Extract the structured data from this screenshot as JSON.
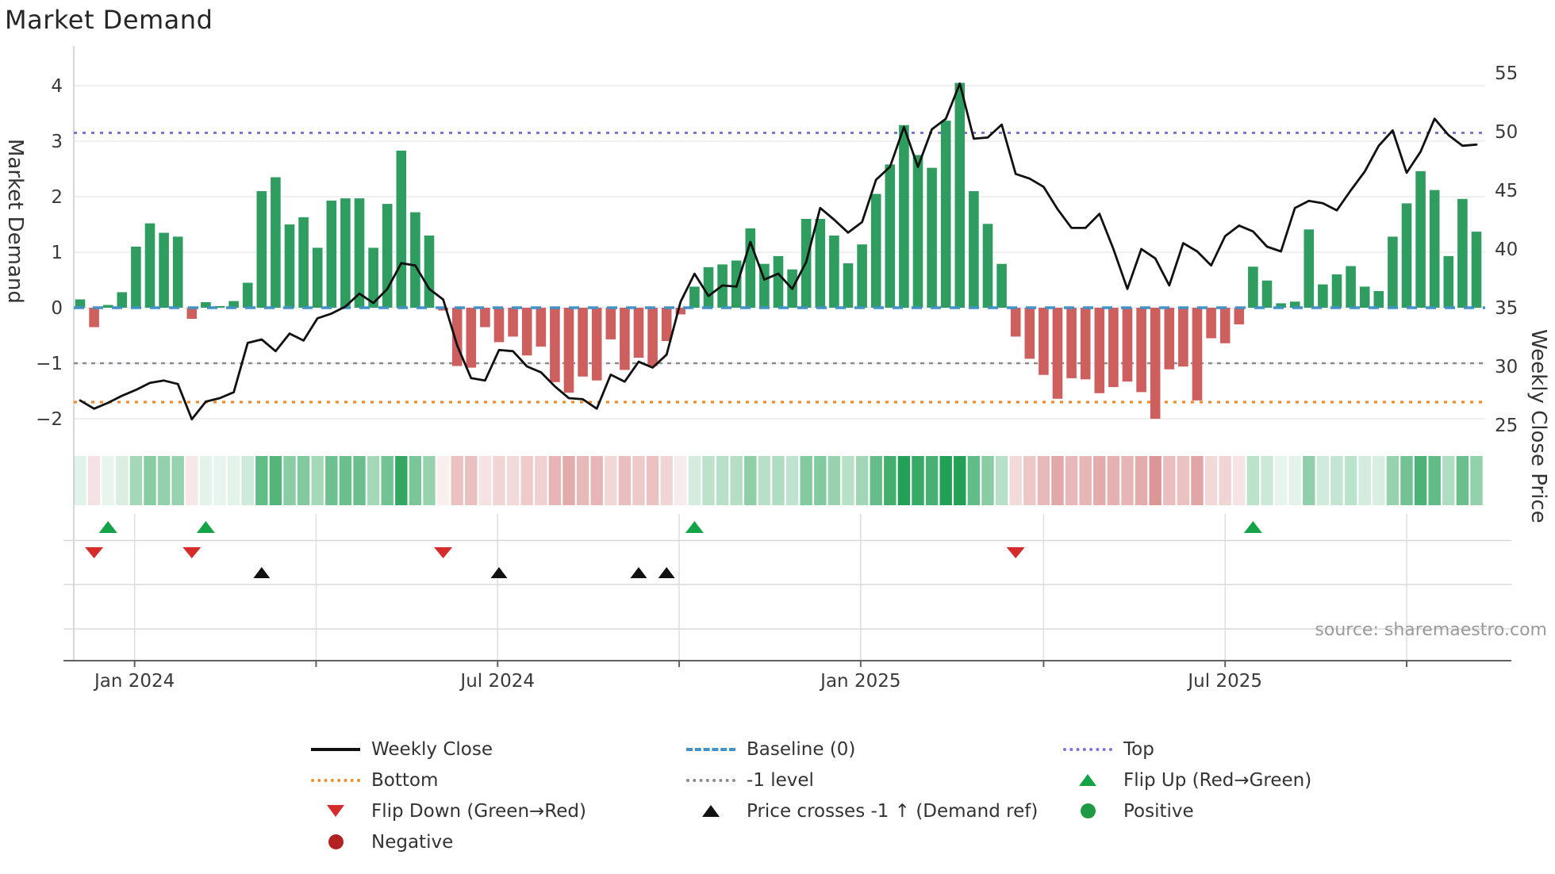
{
  "title": "Market Demand",
  "source": "source: sharemaestro.com",
  "chart_data": {
    "type": "bar",
    "subtype": "weekly demand bars + weekly close price line (dual axis)",
    "title": "Market Demand",
    "ylabel": "Market Demand",
    "ylabel_right": "Weekly Close Price",
    "ylim_left": [
      -2.45,
      4.35
    ],
    "ylim_right": [
      24.3,
      55.8
    ],
    "grid": "horizontal (left axis), vertical quarter gridlines in marker panels",
    "legend_position": "below chart, three columns",
    "y_left_ticks": [
      4,
      3,
      2,
      1,
      0,
      -1,
      -2
    ],
    "y_right_ticks": [
      55,
      50,
      45,
      40,
      35,
      30,
      25
    ],
    "x_ticks": [
      {
        "label": "Jan 2024",
        "week": 3.9
      },
      {
        "label": "Jul 2024",
        "week": 29.9
      },
      {
        "label": "Jan 2025",
        "week": 55.9
      },
      {
        "label": "Jul 2025",
        "week": 82.0
      }
    ],
    "quarter_gridline_weeks": [
      3.9,
      16.9,
      29.9,
      42.9,
      55.9,
      69.0,
      82.0,
      95.0
    ],
    "ref_lines": {
      "top": 3.15,
      "baseline": 0,
      "minus1": -1,
      "bottom": -1.7
    },
    "series": [
      {
        "name": "Market Demand (bars)",
        "axis": "left",
        "values": [
          0.15,
          -0.35,
          0.05,
          0.28,
          1.1,
          1.52,
          1.35,
          1.28,
          -0.2,
          0.1,
          0.03,
          0.12,
          0.45,
          2.1,
          2.35,
          1.5,
          1.63,
          1.08,
          1.93,
          1.97,
          1.97,
          1.08,
          1.87,
          2.83,
          1.72,
          1.3,
          -0.05,
          -1.05,
          -1.08,
          -0.35,
          -0.62,
          -0.52,
          -0.86,
          -0.7,
          -1.34,
          -1.53,
          -1.24,
          -1.31,
          -0.57,
          -1.12,
          -0.9,
          -1.05,
          -0.6,
          -0.12,
          0.38,
          0.73,
          0.78,
          0.85,
          1.43,
          0.79,
          0.93,
          0.69,
          1.6,
          1.6,
          1.3,
          0.8,
          1.14,
          2.05,
          2.58,
          3.29,
          2.75,
          2.52,
          3.37,
          4.05,
          2.1,
          1.51,
          0.79,
          -0.52,
          -0.92,
          -1.21,
          -1.64,
          -1.27,
          -1.29,
          -1.54,
          -1.43,
          -1.33,
          -1.52,
          -2.0,
          -1.11,
          -1.06,
          -1.67,
          -0.55,
          -0.64,
          -0.3,
          0.74,
          0.49,
          0.08,
          0.11,
          1.41,
          0.42,
          0.6,
          0.75,
          0.38,
          0.3,
          1.28,
          1.88,
          2.46,
          2.12,
          0.93,
          1.96,
          1.37
        ]
      },
      {
        "name": "Weekly Close",
        "axis": "right",
        "values": [
          27.1,
          26.4,
          26.9,
          27.5,
          28.0,
          28.6,
          28.8,
          28.5,
          25.5,
          27.0,
          27.3,
          27.8,
          32.0,
          32.3,
          31.3,
          32.8,
          32.2,
          34.1,
          34.5,
          35.1,
          36.2,
          35.4,
          36.6,
          38.8,
          38.6,
          36.6,
          35.7,
          31.8,
          29.0,
          28.8,
          31.4,
          31.3,
          30.0,
          29.5,
          28.3,
          27.3,
          27.2,
          26.4,
          29.3,
          28.7,
          30.4,
          29.9,
          31.0,
          35.5,
          37.9,
          36.0,
          36.9,
          36.8,
          40.6,
          37.4,
          37.9,
          36.6,
          38.9,
          43.5,
          42.5,
          41.4,
          42.3,
          45.9,
          47.0,
          50.4,
          47.0,
          50.2,
          51.1,
          54.1,
          49.4,
          49.5,
          50.6,
          46.4,
          46.0,
          45.3,
          43.4,
          41.8,
          41.8,
          43.0,
          40.0,
          36.6,
          40.0,
          39.2,
          36.9,
          40.5,
          39.8,
          38.6,
          41.1,
          42.0,
          41.5,
          40.2,
          39.8,
          43.5,
          44.1,
          43.9,
          43.3,
          45.0,
          46.6,
          48.8,
          50.1,
          46.5,
          48.3,
          51.1,
          49.7,
          48.8,
          48.9
        ]
      }
    ],
    "heatmap_strip": "color intensity mirrors bar values (green positive, red negative)",
    "markers": {
      "flip_up_weeks": [
        2,
        9,
        44,
        84
      ],
      "flip_down_weeks": [
        1,
        8,
        26,
        67
      ],
      "price_cross_weeks": [
        13,
        30,
        40,
        42
      ]
    },
    "colors": {
      "bar_positive": "#2e9d5f",
      "bar_negative": "#cd5f5f",
      "price_line": "#111111",
      "baseline_blue": "#4292c5",
      "top_purple": "#7f72d9",
      "bottom_orange": "#ef8d2c",
      "minus1_gray": "#8c8c8c",
      "flip_up_green": "#14a347",
      "flip_down_red": "#d62b2b",
      "cross_black": "#111111",
      "positive_green": "#1f9a44",
      "negative_dark_red": "#b22222",
      "heat_green": "#22a055",
      "heat_red": "#cc6464",
      "gridline": "#eaeaf2"
    }
  },
  "legend": {
    "columns": [
      {
        "items": [
          {
            "glyph": "solid-black-line",
            "label": "Weekly Close"
          },
          {
            "glyph": "dotted-orange-line",
            "label": "Bottom"
          },
          {
            "glyph": "triangle-down-red",
            "label": "Flip Down (Green→Red)"
          },
          {
            "glyph": "circle-dark-red",
            "label": "Negative"
          }
        ]
      },
      {
        "items": [
          {
            "glyph": "dashed-blue-line",
            "label": "Baseline (0)"
          },
          {
            "glyph": "dotted-gray-line",
            "label": "-1 level"
          },
          {
            "glyph": "triangle-up-black",
            "label": "Price crosses -1 ↑ (Demand ref)"
          }
        ]
      },
      {
        "items": [
          {
            "glyph": "dotted-purple-line",
            "label": "Top"
          },
          {
            "glyph": "triangle-up-green",
            "label": "Flip Up (Red→Green)"
          },
          {
            "glyph": "circle-green",
            "label": "Positive"
          }
        ]
      }
    ]
  }
}
